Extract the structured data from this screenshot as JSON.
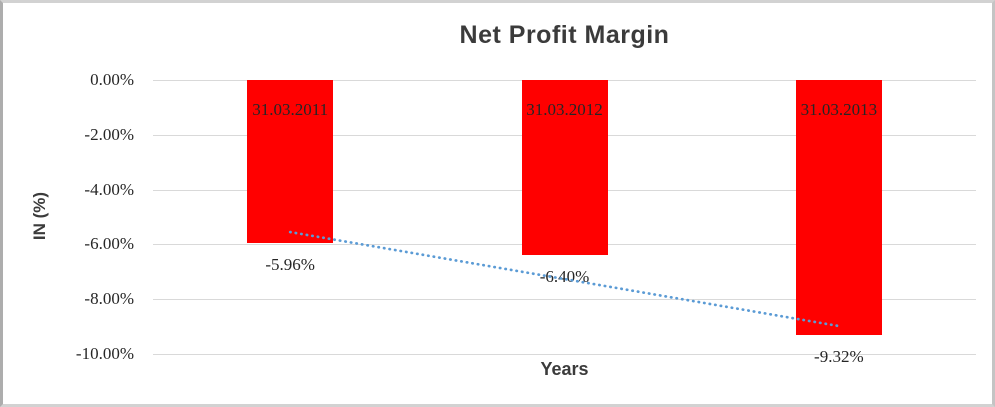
{
  "chart_data": {
    "type": "bar",
    "title": "Net Profit Margin",
    "xlabel": "Years",
    "ylabel": "IN (%)",
    "categories": [
      "31.03.2011",
      "31.03.2012",
      "31.03.2013"
    ],
    "values": [
      -5.96,
      -6.4,
      -9.32
    ],
    "value_labels": [
      "-5.96%",
      "-6.40%",
      "-9.32%"
    ],
    "y_ticks": [
      {
        "label": "0.00%",
        "value": 0
      },
      {
        "label": "-2.00%",
        "value": -2
      },
      {
        "label": "-4.00%",
        "value": -4
      },
      {
        "label": "-6.00%",
        "value": -6
      },
      {
        "label": "-8.00%",
        "value": -8
      },
      {
        "label": "-10.00%",
        "value": -10
      }
    ],
    "ylim": [
      0,
      -10
    ],
    "grid": true,
    "legend": false,
    "bar_color": "#ff0000",
    "gridline_color": "#d9d9d9",
    "trendline": {
      "type": "linear",
      "style": "dotted",
      "color": "#5b9bd5",
      "start_value": -5.55,
      "end_value": -8.98
    }
  }
}
